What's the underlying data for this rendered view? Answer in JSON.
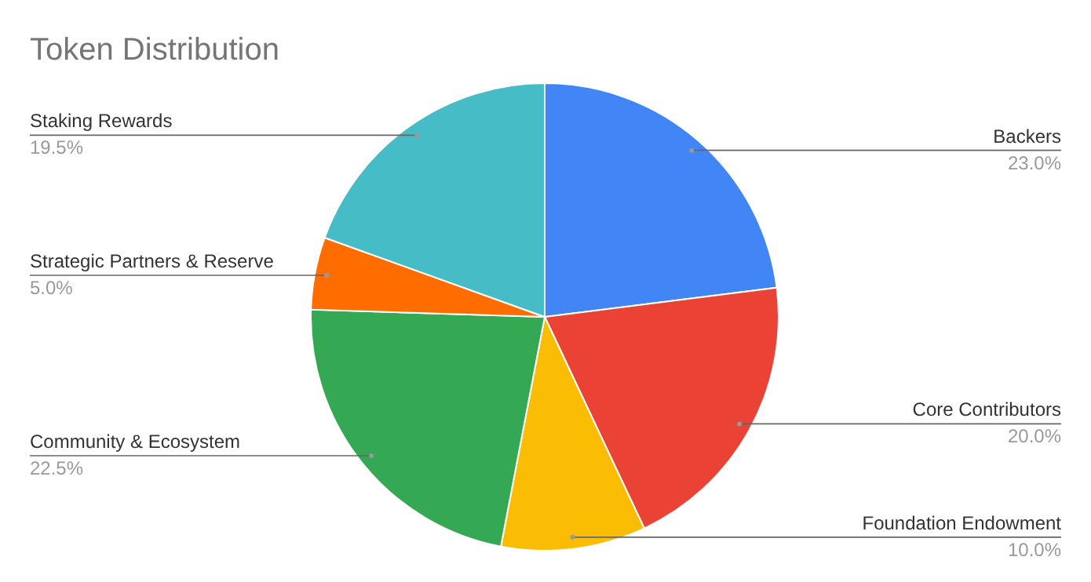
{
  "chart_data": {
    "type": "pie",
    "title": "Token Distribution",
    "categories": [
      "Backers",
      "Core Contributors",
      "Foundation Endowment",
      "Community & Ecosystem",
      "Strategic Partners & Reserve",
      "Staking Rewards"
    ],
    "values": [
      23,
      20,
      10,
      22.5,
      5,
      19.5
    ],
    "colors": [
      "#4285f4",
      "#ea4335",
      "#fbbc04",
      "#34a853",
      "#ff6d01",
      "#46bdc6"
    ],
    "value_labels": [
      "23.0%",
      "20.0%",
      "10.0%",
      "22.5%",
      "5.0%",
      "19.5%"
    ],
    "legend": false
  }
}
